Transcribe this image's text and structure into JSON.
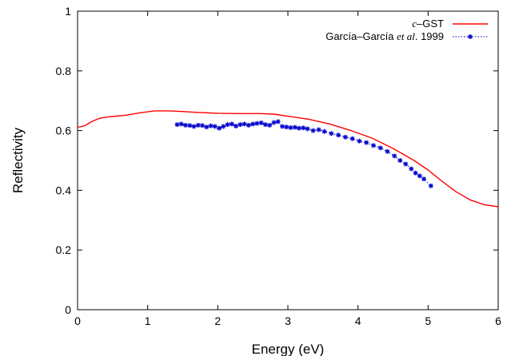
{
  "chart_data": {
    "type": "line",
    "xlabel": "Energy (eV)",
    "ylabel": "Reflectivity",
    "xlim": [
      0,
      6
    ],
    "ylim": [
      0,
      1
    ],
    "x_ticks": [
      "0",
      "1",
      "2",
      "3",
      "4",
      "5",
      "6"
    ],
    "y_ticks": [
      "0",
      "0.2",
      "0.4",
      "0.6",
      "0.8",
      "1"
    ],
    "grid": false,
    "legend_position": "top-right",
    "series": [
      {
        "name": "c–GST",
        "name_italic_part": "c",
        "name_rest": "–GST",
        "color": "#ff0000",
        "style": "line",
        "x": [
          0,
          0.1,
          0.2,
          0.3,
          0.4,
          0.5,
          0.7,
          0.9,
          1.1,
          1.3,
          1.5,
          1.7,
          2.0,
          2.3,
          2.6,
          2.8,
          3.0,
          3.3,
          3.6,
          3.9,
          4.2,
          4.5,
          4.8,
          5.0,
          5.2,
          5.4,
          5.6,
          5.8,
          6.0
        ],
        "y": [
          0.611,
          0.616,
          0.63,
          0.64,
          0.645,
          0.647,
          0.652,
          0.66,
          0.666,
          0.666,
          0.664,
          0.661,
          0.658,
          0.657,
          0.657,
          0.655,
          0.648,
          0.638,
          0.622,
          0.6,
          0.575,
          0.54,
          0.5,
          0.468,
          0.43,
          0.395,
          0.368,
          0.352,
          0.345
        ]
      },
      {
        "name": "García–García et al. 1999",
        "name_pre": "García–García ",
        "name_italic_part": "et al",
        "name_post": ". 1999",
        "color": "#0000cc",
        "style": "dotted-line-with-star-markers",
        "x": [
          1.42,
          1.48,
          1.54,
          1.6,
          1.66,
          1.72,
          1.78,
          1.84,
          1.9,
          1.96,
          2.02,
          2.08,
          2.14,
          2.2,
          2.26,
          2.32,
          2.38,
          2.44,
          2.5,
          2.56,
          2.62,
          2.68,
          2.74,
          2.8,
          2.86,
          2.92,
          2.98,
          3.04,
          3.1,
          3.16,
          3.22,
          3.28,
          3.36,
          3.44,
          3.52,
          3.62,
          3.72,
          3.82,
          3.92,
          4.02,
          4.12,
          4.22,
          4.32,
          4.42,
          4.52,
          4.6,
          4.68,
          4.76,
          4.82,
          4.88,
          4.94,
          5.04
        ],
        "y": [
          0.62,
          0.622,
          0.618,
          0.617,
          0.614,
          0.618,
          0.617,
          0.612,
          0.616,
          0.614,
          0.608,
          0.614,
          0.62,
          0.622,
          0.615,
          0.62,
          0.622,
          0.618,
          0.622,
          0.624,
          0.626,
          0.62,
          0.618,
          0.627,
          0.63,
          0.614,
          0.612,
          0.61,
          0.611,
          0.608,
          0.609,
          0.606,
          0.6,
          0.603,
          0.597,
          0.59,
          0.585,
          0.578,
          0.573,
          0.565,
          0.56,
          0.55,
          0.542,
          0.53,
          0.515,
          0.5,
          0.488,
          0.472,
          0.458,
          0.448,
          0.438,
          0.415
        ]
      }
    ]
  }
}
